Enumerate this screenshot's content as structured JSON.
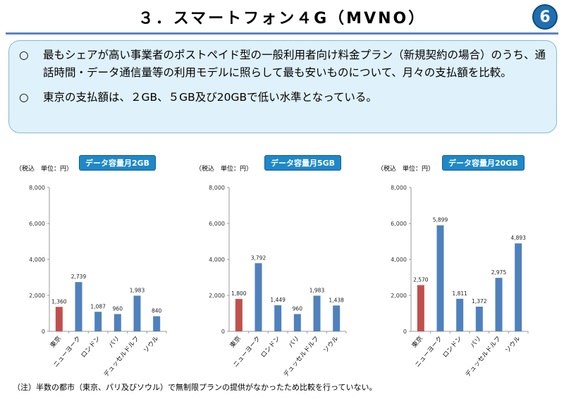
{
  "title": "３．スマートフォン４G（MVNO）",
  "page_badge": "6",
  "summary": [
    {
      "mark": "○",
      "text": "最もシェアが高い事業者のポストペイド型の一般利用者向け料金プラン（新規契約の場合）のうち、通話時間・データ通信量等の利用モデルに照らして最も安いものについて、月々の支払額を比較。"
    },
    {
      "mark": "○",
      "text": "東京の支払額は、２GB、５GB及び20GBで低い水準となっている。"
    }
  ],
  "note": "（注）半数の都市（東京、パリ及びソウル）で無制限プランの提供がなかったため比較を行っていない。",
  "colors": {
    "highlight": "#c0504d",
    "normal": "#4f81bd"
  },
  "chart_data": [
    {
      "type": "bar",
      "title": "データ容量月2GB",
      "unit_label": "（税込　単位：円）",
      "categories": [
        "東京",
        "ニューヨーク",
        "ロンドン",
        "パリ",
        "デュッセルドルフ",
        "ソウル"
      ],
      "values": [
        1360,
        2739,
        1087,
        960,
        1983,
        840
      ],
      "value_labels": [
        "1,360",
        "2,739",
        "1,087",
        "960",
        "1,983",
        "840"
      ],
      "yticks": [
        "0",
        "2,000",
        "4,000",
        "6,000",
        "8,000"
      ],
      "ylim": [
        0,
        8000
      ],
      "highlight_index": 0
    },
    {
      "type": "bar",
      "title": "データ容量月5GB",
      "unit_label": "（税込　単位：円）",
      "categories": [
        "東京",
        "ニューヨーク",
        "ロンドン",
        "パリ",
        "デュッセルドルフ",
        "ソウル"
      ],
      "values": [
        1800,
        3792,
        1449,
        960,
        1983,
        1438
      ],
      "value_labels": [
        "1,800",
        "3,792",
        "1,449",
        "960",
        "1,983",
        "1,438"
      ],
      "yticks": [
        "0",
        "2,000",
        "4,000",
        "6,000",
        "8,000"
      ],
      "ylim": [
        0,
        8000
      ],
      "highlight_index": 0
    },
    {
      "type": "bar",
      "title": "データ容量月20GB",
      "unit_label": "（税込　単位：円）",
      "categories": [
        "東京",
        "ニューヨーク",
        "ロンドン",
        "パリ",
        "デュッセルドルフ",
        "ソウル"
      ],
      "values": [
        2570,
        5899,
        1811,
        1372,
        2975,
        4893
      ],
      "value_labels": [
        "2,570",
        "5,899",
        "1,811",
        "1,372",
        "2,975",
        "4,893"
      ],
      "yticks": [
        "0",
        "2,000",
        "4,000",
        "6,000",
        "8,000"
      ],
      "ylim": [
        0,
        8000
      ],
      "highlight_index": 0
    }
  ]
}
